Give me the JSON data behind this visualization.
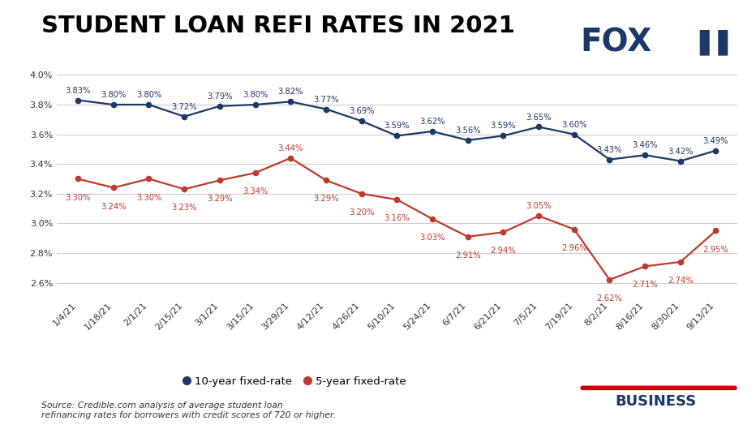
{
  "title": "STUDENT LOAN REFI RATES IN 2021",
  "x_labels": [
    "1/4/21",
    "1/18/21",
    "2/1/21",
    "2/15/21",
    "3/1/21",
    "3/15/21",
    "3/29/21",
    "4/12/21",
    "4/26/21",
    "5/10/21",
    "5/24/21",
    "6/7/21",
    "6/21/21",
    "7/5/21",
    "7/19/21",
    "8/2/21",
    "8/16/21",
    "8/30/21",
    "9/13/21"
  ],
  "ten_year": [
    3.83,
    3.8,
    3.8,
    3.72,
    3.79,
    3.8,
    3.82,
    3.77,
    3.69,
    3.59,
    3.62,
    3.56,
    3.59,
    3.65,
    3.6,
    3.43,
    3.46,
    3.42,
    3.49
  ],
  "five_year": [
    3.3,
    3.24,
    3.3,
    3.23,
    3.29,
    3.34,
    3.44,
    3.29,
    3.2,
    3.16,
    3.03,
    2.91,
    2.94,
    3.05,
    2.96,
    2.62,
    2.71,
    2.74,
    2.95
  ],
  "ten_year_color": "#1c3866",
  "five_year_color": "#c0392b",
  "ylim_min": 2.5,
  "ylim_max": 4.09,
  "yticks": [
    2.6,
    2.8,
    3.0,
    3.2,
    3.4,
    3.6,
    3.8,
    4.0
  ],
  "bg_color": "#ffffff",
  "grid_color": "#cccccc",
  "source_text": "Source: Credible.com analysis of average student loan\nrefinancing rates for borrowers with credit scores of 720 or higher.",
  "legend_10yr": "10-year fixed-rate",
  "legend_5yr": "5-year fixed-rate",
  "title_fontsize": 21,
  "label_fontsize": 7.2,
  "tick_fontsize": 8.0,
  "fox_color": "#1c3866",
  "fox_red": "#cc0000"
}
